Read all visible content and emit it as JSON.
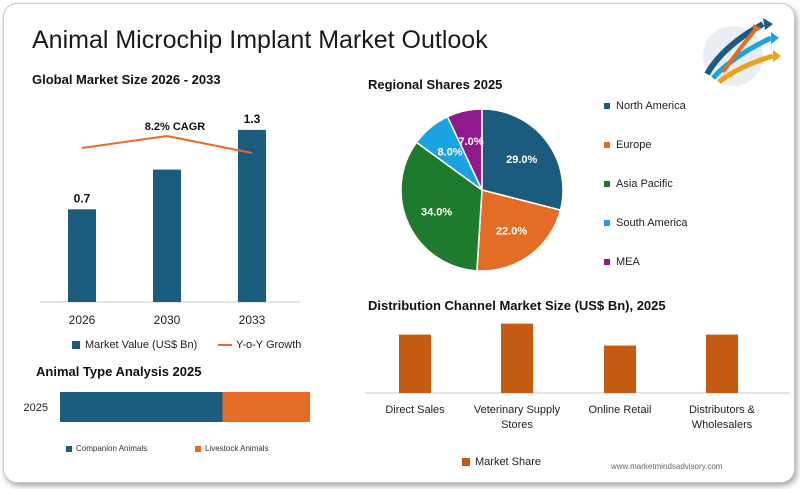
{
  "title": "Animal Microchip Implant Market Outlook",
  "watermark": "www.marketmindsadvisory.com",
  "colors": {
    "blue": "#1a5b7e",
    "orange": "#e46c25",
    "dark_orange": "#c55a11",
    "green": "#1e7a2c",
    "light_blue": "#1aa3e0",
    "purple": "#8e1a8e"
  },
  "global": {
    "title": "Global Market Size 2026 - 2033",
    "cagr_label": "8.2% CAGR",
    "legend_bar": "Market Value (US$ Bn)",
    "legend_line": "Y-o-Y Growth"
  },
  "regional": {
    "title": "Regional Shares 2025"
  },
  "distribution": {
    "title": "Distribution Channel Market Size (US$ Bn), 2025",
    "legend": "Market Share"
  },
  "animal_type": {
    "title": "Animal Type Analysis 2025",
    "legend": [
      "Companion Animals",
      "Livestock Animals"
    ]
  },
  "chart_data": [
    {
      "type": "bar",
      "categories": [
        "2026",
        "2030",
        "2033"
      ],
      "series": [
        {
          "name": "Market Value (US$ Bn)",
          "values": [
            0.7,
            1.0,
            1.3
          ],
          "labels": [
            "0.7",
            "",
            "1.3"
          ]
        },
        {
          "name": "Y-o-Y Growth",
          "type": "line",
          "values": [
            1.0,
            1.12,
            0.95
          ]
        }
      ],
      "ylim": [
        0,
        1.45
      ]
    },
    {
      "type": "pie",
      "categories": [
        "North America",
        "Europe",
        "Asia Pacific",
        "South America",
        "MEA"
      ],
      "values": [
        29.0,
        22.0,
        34.0,
        8.0,
        7.0
      ],
      "labels": [
        "29.0%",
        "22.0%",
        "34.0%",
        "8.0%",
        "7.0%"
      ],
      "colors": [
        "#1a5b7e",
        "#e46c25",
        "#1e7a2c",
        "#1aa3e0",
        "#8e1a8e"
      ],
      "legend_position": "right"
    },
    {
      "type": "bar",
      "categories": [
        "Direct Sales",
        "Veterinary Supply Stores",
        "Online Retail",
        "Distributors & Wholesalers"
      ],
      "category_lines": [
        [
          "Direct Sales"
        ],
        [
          "Veterinary Supply",
          "Stores"
        ],
        [
          "Online Retail"
        ],
        [
          "Distributors &",
          "Wholesalers"
        ]
      ],
      "series": [
        {
          "name": "Market Share",
          "values": [
            0.8,
            0.95,
            0.65,
            0.8
          ]
        }
      ],
      "ylim": [
        0,
        1.0
      ]
    },
    {
      "type": "bar",
      "orientation": "horizontal",
      "stacked": true,
      "categories": [
        "2025"
      ],
      "series": [
        {
          "name": "Companion Animals",
          "values": [
            65
          ]
        },
        {
          "name": "Livestock Animals",
          "values": [
            35
          ]
        }
      ]
    }
  ]
}
